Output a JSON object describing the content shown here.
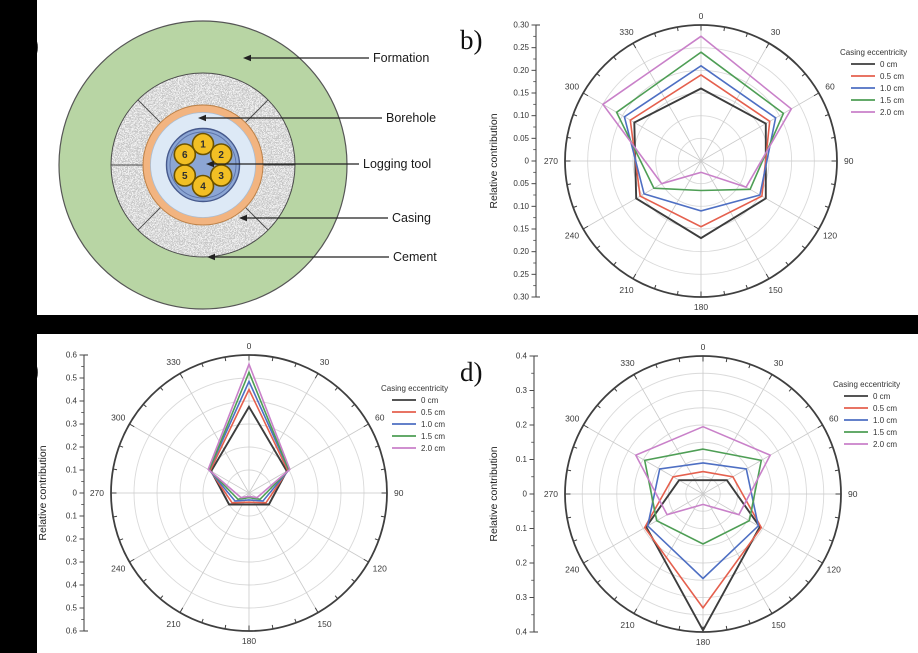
{
  "figure": {
    "panel_labels": {
      "a": "a)",
      "b": "b)",
      "c": "c)",
      "d": "d)"
    }
  },
  "diagram": {
    "labels": [
      "Formation",
      "Borehole",
      "Logging tool",
      "Casing",
      "Cement"
    ],
    "detector_numbers": [
      "1",
      "2",
      "3",
      "4",
      "5",
      "6"
    ],
    "colors": {
      "formation": "#b8d5a4",
      "cement_base": "#c9c9c9",
      "casing": "#f2b480",
      "borehole": "#dde9f6",
      "tool": "#8ca6d4",
      "detector": "#f2bf24"
    }
  },
  "chart_data": [
    {
      "id": "b",
      "type": "line",
      "subtype": "radar",
      "ylabel": "Relative contribution",
      "rmax": 0.3,
      "rings": 6,
      "grid": true,
      "legend_position": "right",
      "axis_tick_labels": [
        "0.30",
        "0.25",
        "0.20",
        "0.15",
        "0.10",
        "0.05",
        "0",
        "0.05",
        "0.10",
        "0.15",
        "0.20",
        "0.25",
        "0.30"
      ],
      "angle_labels": [
        "0",
        "30",
        "60",
        "90",
        "120",
        "150",
        "180",
        "210",
        "240",
        "270",
        "300",
        "330"
      ],
      "vertex_angles_deg": [
        0,
        60,
        120,
        180,
        240,
        300
      ],
      "legend_title": "Casing eccentricity",
      "series": [
        {
          "name": "0 cm",
          "color": "#3d3d3d",
          "values": [
            0.16,
            0.165,
            0.165,
            0.17,
            0.165,
            0.17
          ]
        },
        {
          "name": "0.5 cm",
          "color": "#e5604e",
          "values": [
            0.19,
            0.175,
            0.155,
            0.145,
            0.155,
            0.18
          ]
        },
        {
          "name": "1.0 cm",
          "color": "#4e6fc3",
          "values": [
            0.21,
            0.19,
            0.15,
            0.11,
            0.145,
            0.195
          ]
        },
        {
          "name": "1.5 cm",
          "color": "#4e9e55",
          "values": [
            0.24,
            0.21,
            0.125,
            0.065,
            0.12,
            0.215
          ]
        },
        {
          "name": "2.0 cm",
          "color": "#c981c9",
          "values": [
            0.275,
            0.23,
            0.115,
            0.025,
            0.1,
            0.25
          ]
        }
      ]
    },
    {
      "id": "c",
      "type": "line",
      "subtype": "radar",
      "ylabel": "Relative contribution",
      "rmax": 0.6,
      "rings": 6,
      "grid": true,
      "legend_position": "right",
      "axis_tick_labels": [
        "0.6",
        "0.5",
        "0.4",
        "0.3",
        "0.2",
        "0.1",
        "0",
        "0.1",
        "0.2",
        "0.3",
        "0.4",
        "0.5",
        "0.6"
      ],
      "angle_labels": [
        "0",
        "30",
        "60",
        "90",
        "120",
        "150",
        "180",
        "210",
        "240",
        "270",
        "300",
        "330"
      ],
      "vertex_angles_deg": [
        0,
        60,
        120,
        180,
        240,
        300
      ],
      "legend_title": "Casing eccentricity",
      "series": [
        {
          "name": "0 cm",
          "color": "#3d3d3d",
          "values": [
            0.375,
            0.19,
            0.1,
            0.05,
            0.1,
            0.19
          ]
        },
        {
          "name": "0.5 cm",
          "color": "#e5604e",
          "values": [
            0.45,
            0.195,
            0.085,
            0.04,
            0.085,
            0.195
          ]
        },
        {
          "name": "1.0 cm",
          "color": "#4e6fc3",
          "values": [
            0.485,
            0.2,
            0.07,
            0.03,
            0.07,
            0.2
          ]
        },
        {
          "name": "1.5 cm",
          "color": "#4e9e55",
          "values": [
            0.525,
            0.2,
            0.055,
            0.02,
            0.055,
            0.2
          ]
        },
        {
          "name": "2.0 cm",
          "color": "#c981c9",
          "values": [
            0.56,
            0.205,
            0.04,
            0.015,
            0.04,
            0.205
          ]
        }
      ]
    },
    {
      "id": "d",
      "type": "line",
      "subtype": "radar",
      "ylabel": "Relative contribution",
      "rmax": 0.4,
      "rings": 8,
      "grid": true,
      "legend_position": "right",
      "axis_tick_labels": [
        "0.4",
        "0.3",
        "0.2",
        "0.1",
        "0",
        "0.1",
        "0.2",
        "0.3",
        "0.4"
      ],
      "angle_labels": [
        "0",
        "30",
        "60",
        "90",
        "120",
        "150",
        "180",
        "210",
        "240",
        "270",
        "300",
        "330"
      ],
      "vertex_angles_deg": [
        0,
        60,
        120,
        180,
        240,
        300
      ],
      "legend_title": "Casing eccentricity",
      "series": [
        {
          "name": "0 cm",
          "color": "#3d3d3d",
          "values": [
            0.04,
            0.08,
            0.19,
            0.395,
            0.19,
            0.08
          ]
        },
        {
          "name": "0.5 cm",
          "color": "#e5604e",
          "values": [
            0.065,
            0.1,
            0.195,
            0.33,
            0.195,
            0.1
          ]
        },
        {
          "name": "1.0 cm",
          "color": "#4e6fc3",
          "values": [
            0.09,
            0.145,
            0.185,
            0.245,
            0.185,
            0.145
          ]
        },
        {
          "name": "1.5 cm",
          "color": "#4e9e55",
          "values": [
            0.13,
            0.195,
            0.155,
            0.145,
            0.155,
            0.195
          ]
        },
        {
          "name": "2.0 cm",
          "color": "#c981c9",
          "values": [
            0.195,
            0.225,
            0.12,
            0.03,
            0.12,
            0.225
          ]
        }
      ]
    }
  ]
}
